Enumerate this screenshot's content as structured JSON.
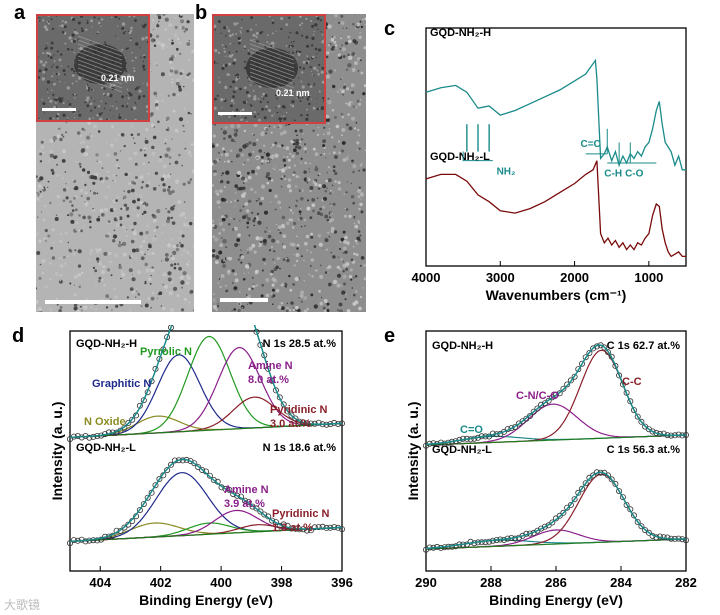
{
  "panels": {
    "a": {
      "letter": "a",
      "lattice_label": "0.21 nm"
    },
    "b": {
      "letter": "b",
      "lattice_label": "0.21 nm"
    },
    "c": {
      "letter": "c"
    },
    "d": {
      "letter": "d"
    },
    "e": {
      "letter": "e"
    }
  },
  "watermark": "大歌镜",
  "colors": {
    "teal": "#1a8a8a",
    "darkred": "#7a0a0a",
    "navy": "#1e2a8c",
    "green": "#1f9a1f",
    "purple": "#8a1f8a",
    "olive": "#8a8a20",
    "maroon": "#8a1f2a",
    "baseline": "#1f7a1f",
    "inset_border": "#d04040"
  },
  "chart_data": [
    {
      "id": "c",
      "type": "line",
      "title": "",
      "xlabel": "Wavenumbers (cm⁻¹)",
      "ylabel": "",
      "xlim": [
        4000,
        500
      ],
      "xticks": [
        "4000",
        "3000",
        "2000",
        "1000"
      ],
      "series": [
        {
          "name": "GQD-NH₂-H",
          "color": "#1a8a8a",
          "x": [
            4000,
            3800,
            3600,
            3450,
            3300,
            3150,
            3000,
            2800,
            2600,
            2400,
            2200,
            2000,
            1850,
            1720,
            1700,
            1650,
            1600,
            1560,
            1500,
            1450,
            1400,
            1350,
            1300,
            1250,
            1200,
            1150,
            1100,
            1050,
            1000,
            950,
            900,
            860,
            820,
            780,
            740,
            700,
            650,
            600,
            550,
            500
          ],
          "y": [
            0.74,
            0.76,
            0.77,
            0.74,
            0.67,
            0.68,
            0.64,
            0.66,
            0.69,
            0.72,
            0.75,
            0.79,
            0.82,
            0.88,
            0.8,
            0.45,
            0.47,
            0.5,
            0.44,
            0.48,
            0.42,
            0.46,
            0.43,
            0.47,
            0.45,
            0.48,
            0.46,
            0.5,
            0.52,
            0.58,
            0.66,
            0.7,
            0.6,
            0.52,
            0.5,
            0.48,
            0.42,
            0.46,
            0.4,
            0.4
          ]
        },
        {
          "name": "GQD-NH₂-L",
          "color": "#7a0a0a",
          "x": [
            4000,
            3800,
            3600,
            3450,
            3300,
            3150,
            3000,
            2800,
            2600,
            2400,
            2200,
            2000,
            1850,
            1750,
            1700,
            1650,
            1600,
            1550,
            1500,
            1450,
            1400,
            1350,
            1300,
            1250,
            1200,
            1150,
            1100,
            1050,
            1000,
            950,
            900,
            860,
            820,
            780,
            740,
            700,
            650,
            600,
            550,
            500
          ],
          "y": [
            0.36,
            0.38,
            0.38,
            0.35,
            0.29,
            0.26,
            0.22,
            0.21,
            0.23,
            0.26,
            0.3,
            0.34,
            0.38,
            0.4,
            0.44,
            0.12,
            0.08,
            0.1,
            0.07,
            0.09,
            0.06,
            0.08,
            0.05,
            0.07,
            0.05,
            0.08,
            0.07,
            0.1,
            0.12,
            0.2,
            0.25,
            0.24,
            0.14,
            0.08,
            0.04,
            0.02,
            0.03,
            0.04,
            0.02,
            0.02
          ]
        }
      ],
      "annotations": {
        "nh2": "NH₂",
        "cc": "C=C",
        "ch": "C-H",
        "co": "C-O"
      }
    },
    {
      "id": "d",
      "type": "line",
      "title": "",
      "xlabel": "Binding Energy (eV)",
      "ylabel": "Intensity (a. u.)",
      "xlim": [
        405,
        396
      ],
      "xticks": [
        "404",
        "402",
        "400",
        "398",
        "396"
      ],
      "samples": [
        {
          "label": "GQD-NH₂-H",
          "content": "N 1s 28.5 at.%",
          "components": [
            {
              "name": "N Oxide",
              "center": 402.1,
              "amp": 0.12,
              "sigma": 0.7,
              "color": "#8a8a20"
            },
            {
              "name": "Graphitic N",
              "center": 401.4,
              "amp": 0.55,
              "sigma": 0.7,
              "color": "#1e2a8c"
            },
            {
              "name": "Pyrrolic N",
              "center": 400.4,
              "amp": 0.67,
              "sigma": 0.7,
              "color": "#1f9a1f"
            },
            {
              "name": "Amine N",
              "center": 399.4,
              "amp": 0.58,
              "sigma": 0.7,
              "color": "#8a1f8a"
            },
            {
              "name": "Pyridinic N",
              "center": 398.9,
              "amp": 0.22,
              "sigma": 0.7,
              "color": "#8a1f2a"
            }
          ],
          "labels": {
            "oxide": "N Oxide",
            "graphitic": "Graphitic N",
            "pyrrolic": "Pyrrolic N",
            "amine": "Amine N",
            "amine_pct": "8.0 at.%",
            "pyridinic": "Pyridinic N",
            "pyridinic_pct": "3.0 at.%"
          }
        },
        {
          "label": "GQD-NH₂-L",
          "content": "N 1s 18.6 at.%",
          "components": [
            {
              "name": "N Oxide",
              "center": 402.2,
              "amp": 0.1,
              "sigma": 0.8,
              "color": "#8a8a20"
            },
            {
              "name": "Graphitic N",
              "center": 401.3,
              "amp": 0.45,
              "sigma": 0.85,
              "color": "#1e2a8c"
            },
            {
              "name": "Pyrrolic N",
              "center": 400.4,
              "amp": 0.08,
              "sigma": 0.7,
              "color": "#1f9a1f"
            },
            {
              "name": "Amine N",
              "center": 399.5,
              "amp": 0.16,
              "sigma": 0.7,
              "color": "#8a1f8a"
            },
            {
              "name": "Pyridinic N",
              "center": 398.8,
              "amp": 0.05,
              "sigma": 0.6,
              "color": "#8a1f2a"
            }
          ],
          "labels": {
            "amine": "Amine N",
            "amine_pct": "3.9 at.%",
            "pyridinic": "Pyridinic N",
            "pyridinic_pct": "1.3 at.%"
          }
        }
      ]
    },
    {
      "id": "e",
      "type": "line",
      "title": "",
      "xlabel": "Binding Energy (eV)",
      "ylabel": "Intensity (a. u.)",
      "xlim": [
        290,
        282
      ],
      "xticks": [
        "290",
        "288",
        "286",
        "284",
        "282"
      ],
      "samples": [
        {
          "label": "GQD-NH₂-H",
          "content": "C 1s 62.7 at.%",
          "components": [
            {
              "name": "C=O",
              "center": 288.0,
              "amp": 0.06,
              "sigma": 0.9,
              "color": "#1a8a8a"
            },
            {
              "name": "C-N/C-O",
              "center": 286.1,
              "amp": 0.36,
              "sigma": 0.75,
              "color": "#8a1f8a"
            },
            {
              "name": "C-C",
              "center": 284.6,
              "amp": 0.88,
              "sigma": 0.65,
              "color": "#8a1f2a"
            }
          ],
          "labels": {
            "co": "C=O",
            "cn": "C-N/C-O",
            "cc": "C-C"
          }
        },
        {
          "label": "GQD-NH₂-L",
          "content": "C 1s 56.3 at.%",
          "components": [
            {
              "name": "C=O",
              "center": 287.8,
              "amp": 0.06,
              "sigma": 1.0,
              "color": "#1a8a8a"
            },
            {
              "name": "C-N/C-O",
              "center": 286.0,
              "amp": 0.14,
              "sigma": 0.7,
              "color": "#8a1f8a"
            },
            {
              "name": "C-C",
              "center": 284.6,
              "amp": 0.68,
              "sigma": 0.7,
              "color": "#8a1f2a"
            }
          ]
        }
      ]
    }
  ]
}
